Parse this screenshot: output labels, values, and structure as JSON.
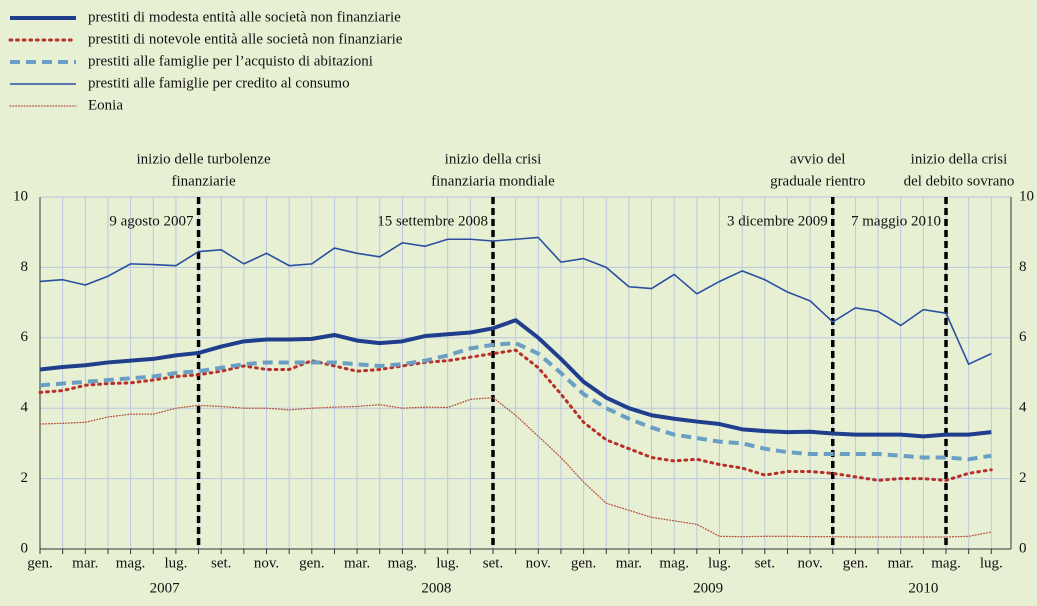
{
  "chart_data": {
    "type": "line",
    "categories": [
      "gen.",
      null,
      "mar.",
      null,
      "mag.",
      null,
      "lug.",
      null,
      "set.",
      null,
      "nov.",
      null,
      "gen.",
      null,
      "mar.",
      null,
      "mag.",
      null,
      "lug.",
      null,
      "set.",
      null,
      "nov.",
      null,
      "gen.",
      null,
      "mar.",
      null,
      "mag.",
      null,
      "lug.",
      null,
      "set.",
      null,
      "nov.",
      null,
      "gen.",
      null,
      "mar.",
      null,
      "mag.",
      null,
      "lug."
    ],
    "year_labels": [
      "2007",
      "2008",
      "2009",
      "2010"
    ],
    "ylim": [
      0,
      10
    ],
    "yticks": [
      0,
      2,
      4,
      6,
      8,
      10
    ],
    "grid": true,
    "series": [
      {
        "name": "prestiti di modesta entità alle società non finanziarie",
        "color": "#1f3e8c",
        "style": "solid",
        "width": 4,
        "values": [
          5.1,
          5.17,
          5.22,
          5.3,
          5.35,
          5.4,
          5.5,
          5.57,
          5.75,
          5.9,
          5.95,
          5.95,
          5.97,
          6.08,
          5.92,
          5.85,
          5.9,
          6.05,
          6.1,
          6.15,
          6.27,
          6.5,
          6.0,
          5.4,
          4.75,
          4.3,
          4.0,
          3.8,
          3.7,
          3.62,
          3.55,
          3.4,
          3.35,
          3.32,
          3.33,
          3.28,
          3.25,
          3.25,
          3.25,
          3.2,
          3.25,
          3.25,
          3.32
        ]
      },
      {
        "name": "prestiti di notevole entità alle società non finanziarie",
        "color": "#b8302a",
        "style": "dotted",
        "width": 3,
        "values": [
          4.45,
          4.5,
          4.65,
          4.7,
          4.72,
          4.8,
          4.9,
          4.95,
          5.05,
          5.2,
          5.1,
          5.1,
          5.35,
          5.2,
          5.05,
          5.1,
          5.2,
          5.3,
          5.35,
          5.45,
          5.55,
          5.65,
          5.15,
          4.4,
          3.6,
          3.1,
          2.85,
          2.6,
          2.5,
          2.55,
          2.4,
          2.3,
          2.1,
          2.2,
          2.2,
          2.15,
          2.05,
          1.95,
          2.0,
          2.0,
          1.95,
          2.15,
          2.25
        ]
      },
      {
        "name": "prestiti alle famiglie per l’acquisto di abitazioni",
        "color": "#6a9ec3",
        "style": "dashed",
        "width": 4,
        "values": [
          4.65,
          4.7,
          4.75,
          4.8,
          4.85,
          4.9,
          5.0,
          5.05,
          5.15,
          5.25,
          5.3,
          5.3,
          5.3,
          5.3,
          5.25,
          5.2,
          5.25,
          5.35,
          5.5,
          5.7,
          5.8,
          5.85,
          5.55,
          5.0,
          4.4,
          4.0,
          3.7,
          3.45,
          3.25,
          3.15,
          3.05,
          3.0,
          2.85,
          2.75,
          2.7,
          2.7,
          2.7,
          2.7,
          2.65,
          2.6,
          2.6,
          2.55,
          2.65
        ]
      },
      {
        "name": "prestiti alle famiglie per credito al consumo",
        "color": "#2a4ea0",
        "style": "solid",
        "width": 1.6,
        "values": [
          7.6,
          7.65,
          7.5,
          7.75,
          8.1,
          8.08,
          8.05,
          8.45,
          8.5,
          8.1,
          8.4,
          8.05,
          8.1,
          8.55,
          8.4,
          8.3,
          8.7,
          8.6,
          8.8,
          8.8,
          8.75,
          8.8,
          8.85,
          8.15,
          8.25,
          8.0,
          7.45,
          7.4,
          7.8,
          7.25,
          7.6,
          7.9,
          7.65,
          7.3,
          7.05,
          6.45,
          6.85,
          6.75,
          6.35,
          6.8,
          6.7,
          5.25,
          5.55
        ]
      },
      {
        "name": "Eonia",
        "color": "#b5533c",
        "style": "dotted",
        "width": 1.3,
        "values": [
          3.55,
          3.57,
          3.6,
          3.75,
          3.83,
          3.83,
          4.0,
          4.08,
          4.05,
          4.0,
          4.0,
          3.95,
          4.0,
          4.03,
          4.05,
          4.1,
          4.0,
          4.03,
          4.02,
          4.25,
          4.3,
          3.8,
          3.2,
          2.6,
          1.9,
          1.3,
          1.1,
          0.9,
          0.8,
          0.7,
          0.36,
          0.35,
          0.36,
          0.36,
          0.35,
          0.35,
          0.34,
          0.34,
          0.34,
          0.34,
          0.34,
          0.36,
          0.48
        ]
      }
    ],
    "events": [
      {
        "category": 7,
        "label": [
          "inizio delle turbolenze",
          "finanziarie"
        ],
        "date": "9 agosto 2007"
      },
      {
        "category": 20,
        "label": [
          "inizio della crisi",
          "finanziaria mondiale"
        ],
        "date": "15 settembre 2008"
      },
      {
        "category": 35,
        "label": [
          "avvio del",
          "graduale rientro"
        ],
        "date": "3 dicembre 2009"
      },
      {
        "category": 40,
        "label": [
          "inizio della crisi",
          "del debito sovrano"
        ],
        "date": "7 maggio 2010"
      }
    ]
  }
}
